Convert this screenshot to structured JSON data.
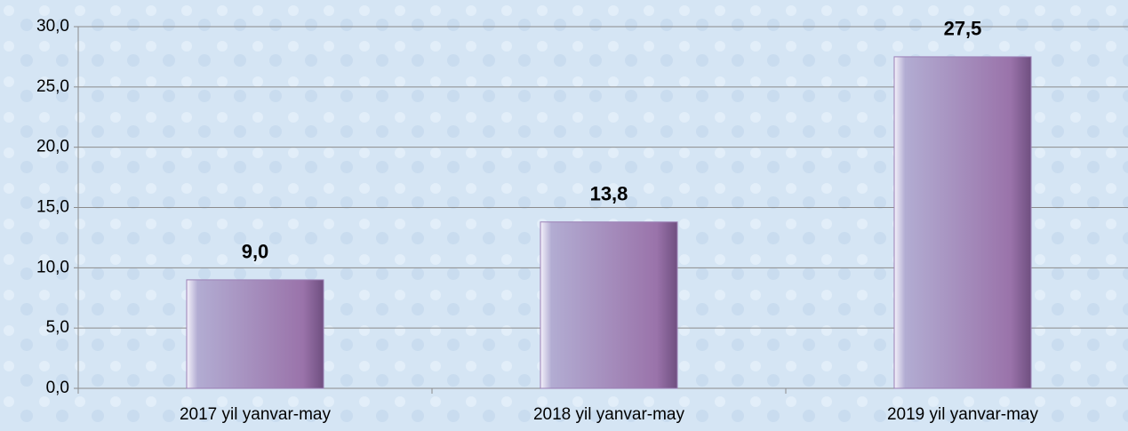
{
  "chart_data": {
    "type": "bar",
    "categories": [
      "2017 yil yanvar-may",
      "2018 yil yanvar-may",
      "2019 yil yanvar-may"
    ],
    "values": [
      9.0,
      13.8,
      27.5
    ],
    "value_labels": [
      "9,0",
      "13,8",
      "27,5"
    ],
    "color": "#9b7fb5",
    "ylim": [
      0,
      30
    ],
    "yticks": [
      {
        "value": 0,
        "label": "0,0"
      },
      {
        "value": 5,
        "label": "5,0"
      },
      {
        "value": 10,
        "label": "10,0"
      },
      {
        "value": 15,
        "label": "15,0"
      },
      {
        "value": 20,
        "label": "20,0"
      },
      {
        "value": 25,
        "label": "25,0"
      },
      {
        "value": 30,
        "label": "30,0"
      }
    ],
    "grid": true
  }
}
